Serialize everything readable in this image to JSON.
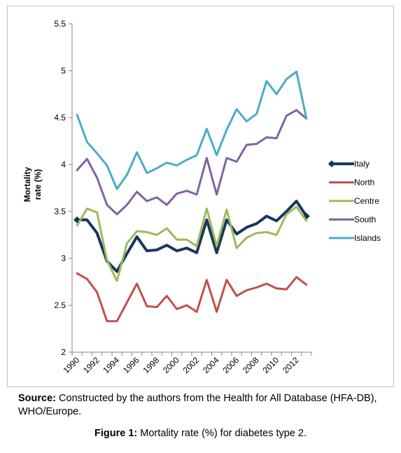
{
  "chart_data": {
    "type": "line",
    "ylabel": "Mortality\nrate (%)",
    "ylim": [
      2,
      5.5
    ],
    "y_ticks": [
      "2",
      "2.5",
      "3",
      "3.5",
      "4",
      "4.5",
      "5",
      "5.5"
    ],
    "x_tick_labels": [
      "1990",
      "1992",
      "1994",
      "1996",
      "1998",
      "2000",
      "2002",
      "2004",
      "2006",
      "2008",
      "2010",
      "2012"
    ],
    "x": [
      1990,
      1991,
      1992,
      1993,
      1994,
      1995,
      1996,
      1997,
      1998,
      1999,
      2000,
      2001,
      2002,
      2003,
      2004,
      2005,
      2006,
      2007,
      2008,
      2009,
      2010,
      2011,
      2012,
      2013
    ],
    "grid": false,
    "legend_position": "right",
    "series": [
      {
        "name": "Italy",
        "color": "#17375e",
        "marker": "diamond",
        "values": [
          3.41,
          3.41,
          3.27,
          2.97,
          2.86,
          3.05,
          3.23,
          3.08,
          3.09,
          3.14,
          3.08,
          3.11,
          3.06,
          3.41,
          3.06,
          3.41,
          3.26,
          3.33,
          3.37,
          3.45,
          3.4,
          3.5,
          3.61,
          3.45
        ]
      },
      {
        "name": "North",
        "color": "#c0504d",
        "values": [
          2.84,
          2.78,
          2.64,
          2.33,
          2.33,
          2.53,
          2.73,
          2.49,
          2.48,
          2.6,
          2.46,
          2.5,
          2.43,
          2.77,
          2.43,
          2.77,
          2.6,
          2.66,
          2.69,
          2.73,
          2.68,
          2.67,
          2.8,
          2.72
        ]
      },
      {
        "name": "Centre",
        "color": "#9bbb59",
        "values": [
          3.35,
          3.53,
          3.49,
          2.98,
          2.76,
          3.16,
          3.29,
          3.28,
          3.25,
          3.32,
          3.2,
          3.2,
          3.13,
          3.53,
          3.13,
          3.52,
          3.11,
          3.22,
          3.27,
          3.28,
          3.25,
          3.47,
          3.55,
          3.4
        ]
      },
      {
        "name": "South",
        "color": "#8064a2",
        "values": [
          3.94,
          4.06,
          3.86,
          3.57,
          3.47,
          3.57,
          3.71,
          3.61,
          3.65,
          3.57,
          3.69,
          3.72,
          3.68,
          4.07,
          3.68,
          4.07,
          4.03,
          4.21,
          4.22,
          4.29,
          4.28,
          4.52,
          4.58,
          4.49
        ]
      },
      {
        "name": "Islands",
        "color": "#4bacc6",
        "values": [
          4.53,
          4.24,
          4.12,
          3.99,
          3.74,
          3.89,
          4.13,
          3.91,
          3.96,
          4.02,
          3.99,
          4.05,
          4.1,
          4.38,
          4.1,
          4.37,
          4.59,
          4.46,
          4.54,
          4.89,
          4.75,
          4.91,
          4.99,
          4.49
        ]
      }
    ]
  },
  "source_note": {
    "label": "Source:",
    "text": " Constructed by the authors from the Health for All Database (HFA-DB), WHO/Europe."
  },
  "caption": {
    "label": "Figure 1:",
    "text": " Mortality rate (%) for diabetes type 2."
  }
}
